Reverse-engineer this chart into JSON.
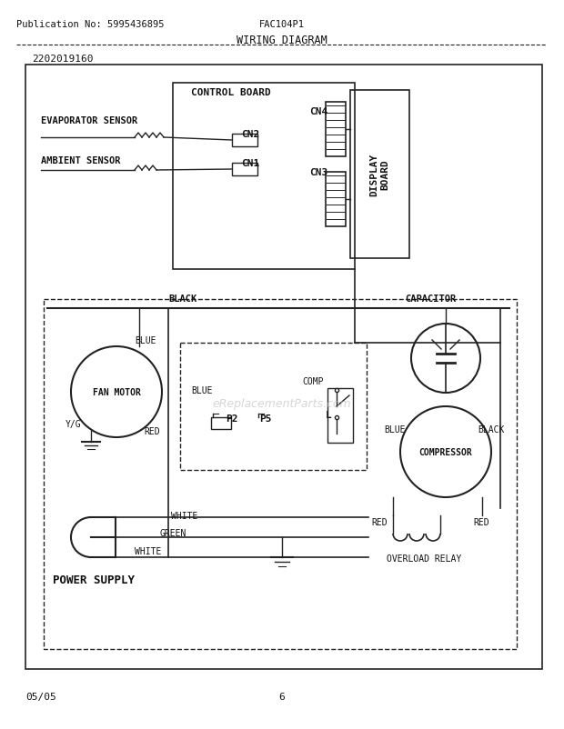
{
  "title": "WIRING DIAGRAM",
  "pub_no": "Publication No: 5995436895",
  "model": "FAC104P1",
  "part_no": "2202019160",
  "date": "05/05",
  "page": "6",
  "bg_color": "#ffffff",
  "line_color": "#222222",
  "text_color": "#111111",
  "watermark": "eReplacementParts.com"
}
